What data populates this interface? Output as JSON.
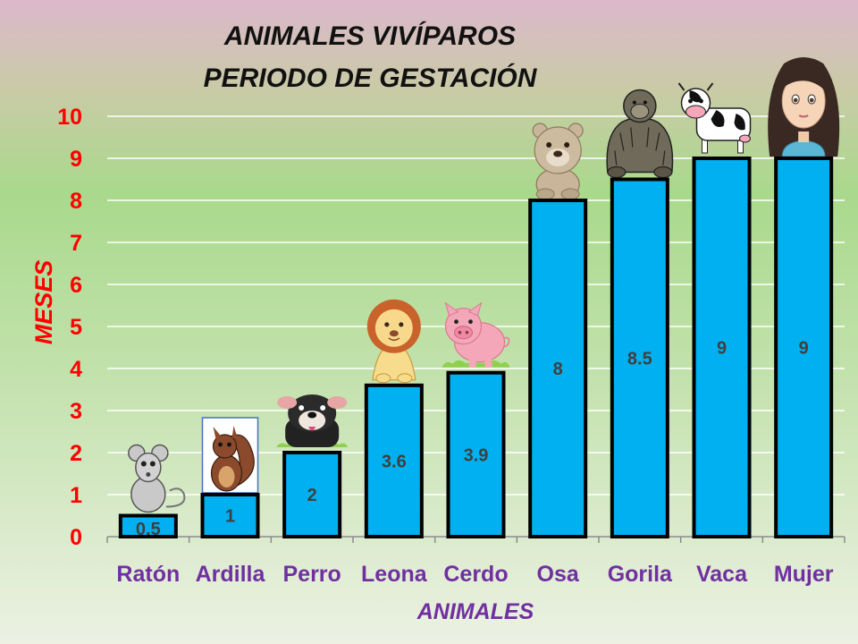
{
  "chart_data": {
    "type": "bar",
    "title_lines": [
      "ANIMALES VIVÍPAROS",
      "PERIODO DE GESTACIÓN"
    ],
    "xlabel": "ANIMALES",
    "ylabel": "MESES",
    "categories": [
      "Ratón",
      "Ardilla",
      "Perro",
      "Leona",
      "Cerdo",
      "Osa",
      "Gorila",
      "Vaca",
      "Mujer"
    ],
    "values": [
      0.5,
      1,
      2,
      3.6,
      3.9,
      8,
      8.5,
      9,
      9
    ],
    "data_labels": [
      "0.5",
      "1",
      "2",
      "3.6",
      "3.9",
      "8",
      "8.5",
      "9",
      "9"
    ],
    "ylim": [
      0,
      10
    ],
    "yticks": [
      "0",
      "1",
      "2",
      "3",
      "4",
      "5",
      "6",
      "7",
      "8",
      "9",
      "10"
    ],
    "grid": true,
    "bar_color": "#00b0f0",
    "bar_outline_color": "#000000",
    "animal_icons": [
      "mouse-icon",
      "squirrel-icon",
      "dog-icon",
      "lion-icon",
      "pig-icon",
      "bear-icon",
      "gorilla-icon",
      "cow-icon",
      "woman-icon"
    ]
  }
}
